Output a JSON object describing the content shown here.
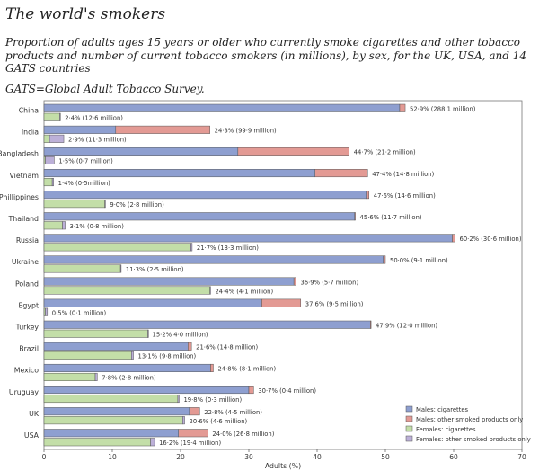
{
  "title": "The world's smokers",
  "subtitle": "Proportion of adults ages 15 years or older who currently smoke cigarettes and other tobacco products and number of current tobacco smokers (in millions), by sex, for the UK, USA, and 14 GATS countries",
  "note": "GATS=Global Adult Tobacco Survey.",
  "colors": {
    "male_cig": "#8e9fd0",
    "male_other": "#e39a94",
    "female_cig": "#c3dea8",
    "female_other": "#bcb0d8"
  },
  "chart_data": {
    "type": "bar",
    "orientation": "horizontal",
    "xlabel": "Adults (%)",
    "xlim": [
      0,
      70
    ],
    "xticks": [
      "0",
      "10",
      "20",
      "30",
      "40",
      "50",
      "60",
      "70"
    ],
    "legend_position": "bottom-right",
    "series": [
      {
        "name": "Males: cigarettes"
      },
      {
        "name": "Males: other smoked products only"
      },
      {
        "name": "Females: cigarettes"
      },
      {
        "name": "Females: other smoked products only"
      }
    ],
    "countries": [
      {
        "name": "China",
        "male": {
          "cig": 52.1,
          "other": 0.8,
          "label": "52·9% (288·1 million)"
        },
        "female": {
          "cig": 2.3,
          "other": 0.1,
          "label": "2·4% (12·6 million)"
        }
      },
      {
        "name": "India",
        "male": {
          "cig": 10.5,
          "other": 13.8,
          "label": "24·3% (99·9 million)"
        },
        "female": {
          "cig": 0.8,
          "other": 2.1,
          "label": "2·9% (11·3 million)"
        }
      },
      {
        "name": "Bangladesh",
        "male": {
          "cig": 28.4,
          "other": 16.3,
          "label": "44·7% (21·2 million)"
        },
        "female": {
          "cig": 0.2,
          "other": 1.3,
          "label": "1·5% (0·7 million)"
        }
      },
      {
        "name": "Vietnam",
        "male": {
          "cig": 39.7,
          "other": 7.7,
          "label": "47·4% (14·8 million)"
        },
        "female": {
          "cig": 1.2,
          "other": 0.2,
          "label": "1·4% (0·5million)"
        }
      },
      {
        "name": "Phillippines",
        "male": {
          "cig": 47.2,
          "other": 0.4,
          "label": "47·6% (14·6 million)"
        },
        "female": {
          "cig": 8.9,
          "other": 0.1,
          "label": "9·0% (2·8 million)"
        }
      },
      {
        "name": "Thailand",
        "male": {
          "cig": 45.5,
          "other": 0.1,
          "label": "45·6% (11·7 million)"
        },
        "female": {
          "cig": 2.7,
          "other": 0.4,
          "label": "3·1% (0·8 million)"
        }
      },
      {
        "name": "Russia",
        "male": {
          "cig": 59.8,
          "other": 0.4,
          "label": "60·2% (30·6 million)"
        },
        "female": {
          "cig": 21.5,
          "other": 0.2,
          "label": "21·7% (13·3 million)"
        }
      },
      {
        "name": "Ukraine",
        "male": {
          "cig": 49.7,
          "other": 0.3,
          "label": "50·0% (9·1 million)"
        },
        "female": {
          "cig": 11.2,
          "other": 0.1,
          "label": "11·3% (2·5 million)"
        }
      },
      {
        "name": "Poland",
        "male": {
          "cig": 36.6,
          "other": 0.3,
          "label": "36·9% (5·7 million)"
        },
        "female": {
          "cig": 24.3,
          "other": 0.1,
          "label": "24·4% (4·1 million)"
        }
      },
      {
        "name": "Egypt",
        "male": {
          "cig": 31.9,
          "other": 5.7,
          "label": "37·6% (9·5 million)"
        },
        "female": {
          "cig": 0.2,
          "other": 0.3,
          "label": "0·5% (0·1 million)"
        }
      },
      {
        "name": "Turkey",
        "male": {
          "cig": 47.8,
          "other": 0.1,
          "label": "47·9% (12·0 million)"
        },
        "female": {
          "cig": 15.2,
          "other": 0.0,
          "label": "15·2% 4·0 million)"
        }
      },
      {
        "name": "Brazil",
        "male": {
          "cig": 21.1,
          "other": 0.5,
          "label": "21·6% (14·8 million)"
        },
        "female": {
          "cig": 12.8,
          "other": 0.3,
          "label": "13·1% (9·8 million)"
        }
      },
      {
        "name": "Mexico",
        "male": {
          "cig": 24.4,
          "other": 0.4,
          "label": "24·8% (8·1 million)"
        },
        "female": {
          "cig": 7.5,
          "other": 0.3,
          "label": "7·8% (2·8 million)"
        }
      },
      {
        "name": "Uruguay",
        "male": {
          "cig": 30.0,
          "other": 0.7,
          "label": "30·7% (0·4 million)"
        },
        "female": {
          "cig": 19.6,
          "other": 0.2,
          "label": "19·8% (0·3 million)"
        }
      },
      {
        "name": "UK",
        "male": {
          "cig": 21.3,
          "other": 1.5,
          "label": "22·8% (4·5 million)"
        },
        "female": {
          "cig": 20.3,
          "other": 0.3,
          "label": "20·6% (4·6 million)"
        }
      },
      {
        "name": "USA",
        "male": {
          "cig": 19.7,
          "other": 4.3,
          "label": "24·0% (26·8 million)"
        },
        "female": {
          "cig": 15.6,
          "other": 0.6,
          "label": "16·2% (19·4 million)"
        }
      }
    ]
  }
}
